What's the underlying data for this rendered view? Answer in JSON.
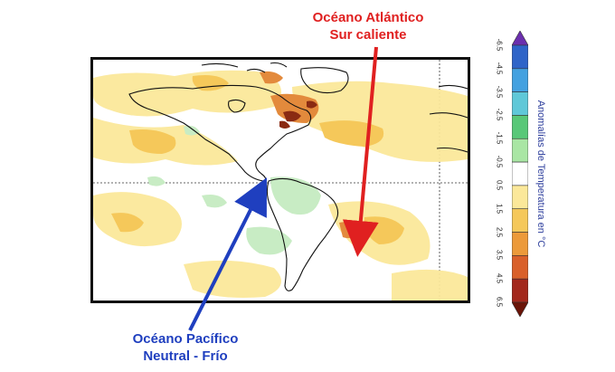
{
  "annotations": {
    "atlantic": [
      "Océano Atlántico",
      "Sur caliente"
    ],
    "pacific": [
      "Océano Pacífico",
      "Neutral - Frío"
    ]
  },
  "colors": {
    "atlantic_text": "#e02020",
    "pacific_text": "#1f3fbf",
    "atlantic_arrow": "#e02020",
    "pacific_arrow": "#1f3fbf",
    "warm_light": "#fbe89a",
    "warm_mid": "#f5c85a",
    "warm_strong": "#e38a3c",
    "warm_deep": "#8a2a12",
    "cool_light": "#c8ecc4",
    "land_outline": "#111111"
  },
  "colorbar": {
    "title": "Anomalías de Temperatura en °C",
    "ticks": [
      "-6.5",
      "-4.5",
      "-3.5",
      "-2.5",
      "-1.5",
      "-0.5",
      "0.5",
      "1.5",
      "2.5",
      "3.5",
      "4.5",
      "6.5"
    ],
    "colors": [
      "#6b2fae",
      "#2f64c8",
      "#43a1e0",
      "#5fc8d8",
      "#58c878",
      "#a9e6a4",
      "#ffffff",
      "#fbe89a",
      "#f5c85a",
      "#ec9a3a",
      "#d9602a",
      "#a3281c",
      "#6a1408"
    ]
  }
}
